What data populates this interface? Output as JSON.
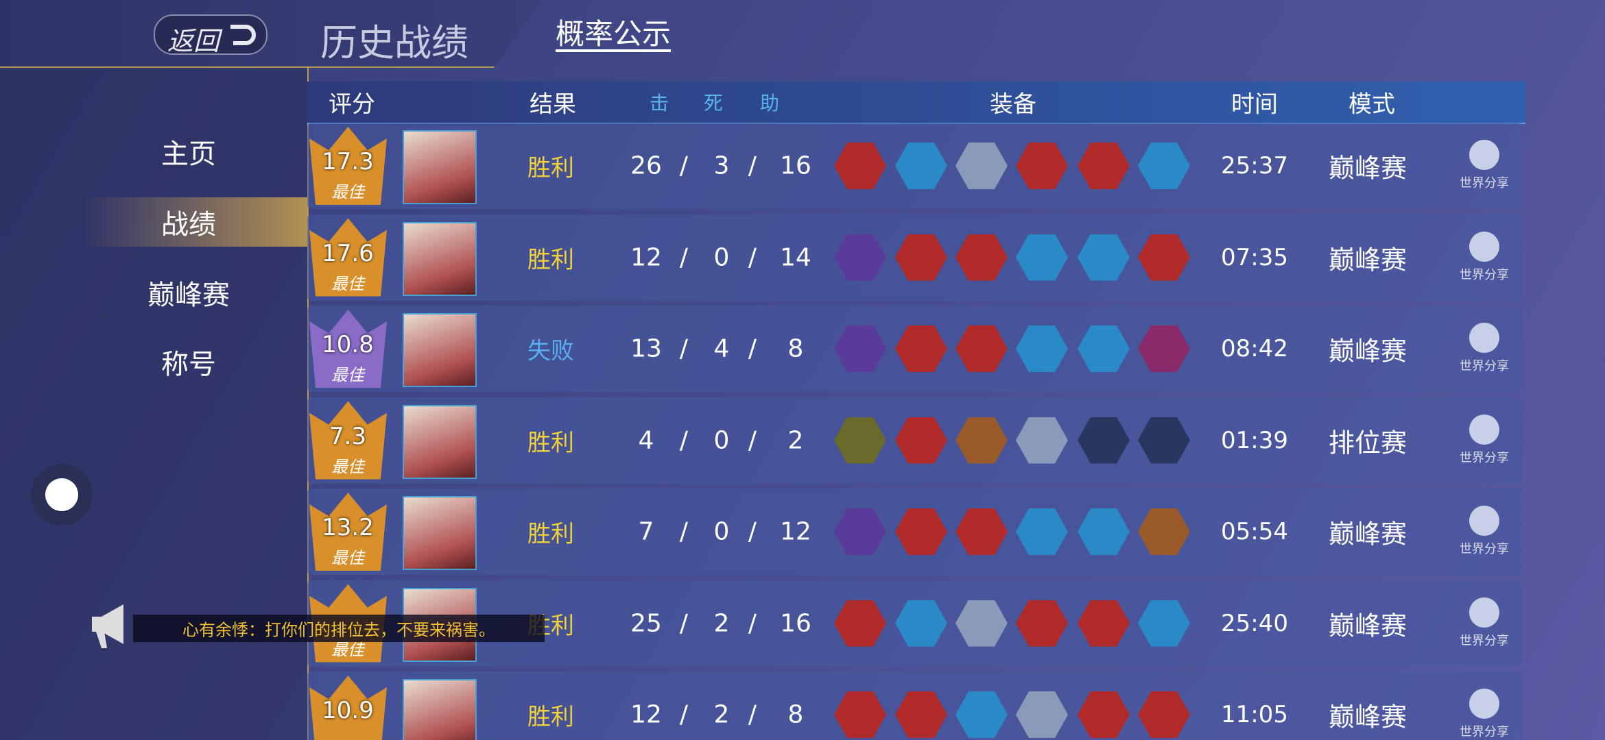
{
  "header": {
    "back": "返回",
    "title": "历史战绩",
    "tab": "概率公示"
  },
  "nav": {
    "items": [
      "主页",
      "战绩",
      "巅峰赛",
      "称号"
    ],
    "active": 1
  },
  "table": {
    "headers": [
      "评分",
      "结果",
      "击",
      "死",
      "助",
      "装备",
      "时间",
      "模式"
    ],
    "kda_separator": "/",
    "share_label": "世界分享",
    "rows": [
      {
        "score": "17.3",
        "best": "最佳",
        "badge_color": "#d9902a",
        "result": "胜利",
        "result_color": "#f2d23a",
        "kills": "26",
        "deaths": "3",
        "assists": "16",
        "time": "25:37",
        "mode": "巅峰赛"
      },
      {
        "score": "17.6",
        "best": "最佳",
        "badge_color": "#d9902a",
        "result": "胜利",
        "result_color": "#f2d23a",
        "kills": "12",
        "deaths": "0",
        "assists": "14",
        "time": "07:35",
        "mode": "巅峰赛"
      },
      {
        "score": "10.8",
        "best": "最佳",
        "badge_color": "#8a6cc8",
        "result": "失败",
        "result_color": "#5aaef0",
        "kills": "13",
        "deaths": "4",
        "assists": "8",
        "time": "08:42",
        "mode": "巅峰赛"
      },
      {
        "score": "7.3",
        "best": "最佳",
        "badge_color": "#d9902a",
        "result": "胜利",
        "result_color": "#f2d23a",
        "kills": "4",
        "deaths": "0",
        "assists": "2",
        "time": "01:39",
        "mode": "排位赛"
      },
      {
        "score": "13.2",
        "best": "最佳",
        "badge_color": "#d9902a",
        "result": "胜利",
        "result_color": "#f2d23a",
        "kills": "7",
        "deaths": "0",
        "assists": "12",
        "time": "05:54",
        "mode": "巅峰赛"
      },
      {
        "score": null,
        "best": "最佳",
        "badge_color": "#d9902a",
        "result": "胜利",
        "result_color": "#f2d23a",
        "kills": "25",
        "deaths": "2",
        "assists": "16",
        "time": "25:40",
        "mode": "巅峰赛"
      },
      {
        "score": "10.9",
        "best": null,
        "badge_color": "#d9902a",
        "result": "胜利",
        "result_color": "#f2d23a",
        "kills": "12",
        "deaths": "2",
        "assists": "8",
        "time": "11:05",
        "mode": "巅峰赛"
      }
    ]
  },
  "chat": {
    "message": "心有余悸：打你们的排位去，不要来祸害。"
  }
}
